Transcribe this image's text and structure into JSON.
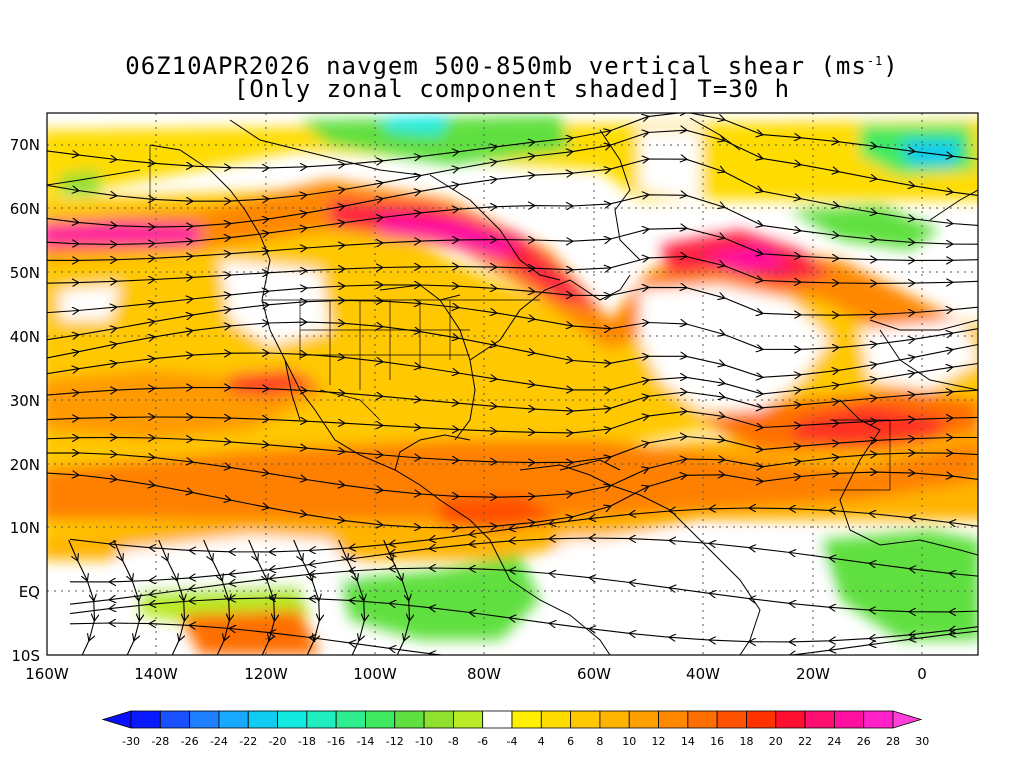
{
  "title_line1": "06Z10APR2026 navgem 500-850mb vertical shear (ms",
  "title_sup": "-1",
  "title_close": ")",
  "title_line2": "[Only zonal component shaded] T=30 h",
  "lat_labels": [
    "70N",
    "60N",
    "50N",
    "40N",
    "30N",
    "20N",
    "10N",
    "EQ",
    "10S"
  ],
  "lon_labels": [
    "160W",
    "140W",
    "120W",
    "100W",
    "80W",
    "60W",
    "40W",
    "20W",
    "0"
  ],
  "colorbar_labels": [
    "-30",
    "-28",
    "-26",
    "-24",
    "-22",
    "-20",
    "-18",
    "-16",
    "-14",
    "-12",
    "-10",
    "-8",
    "-6",
    "-4",
    "4",
    "6",
    "8",
    "10",
    "12",
    "14",
    "16",
    "18",
    "20",
    "22",
    "24",
    "26",
    "28",
    "30"
  ],
  "colorbar_colors": [
    "#0a1aff",
    "#1a50ff",
    "#1e7fff",
    "#18a8ff",
    "#10ccf0",
    "#10eae0",
    "#20eec0",
    "#30ee90",
    "#40ea60",
    "#60e040",
    "#90e030",
    "#b8ea28",
    "#ffffff",
    "#fff000",
    "#ffdc00",
    "#ffc800",
    "#ffb400",
    "#ffa000",
    "#ff8800",
    "#ff6e00",
    "#ff5200",
    "#ff3200",
    "#ff1030",
    "#ff1070",
    "#ff10a0",
    "#ff20c8"
  ]
}
